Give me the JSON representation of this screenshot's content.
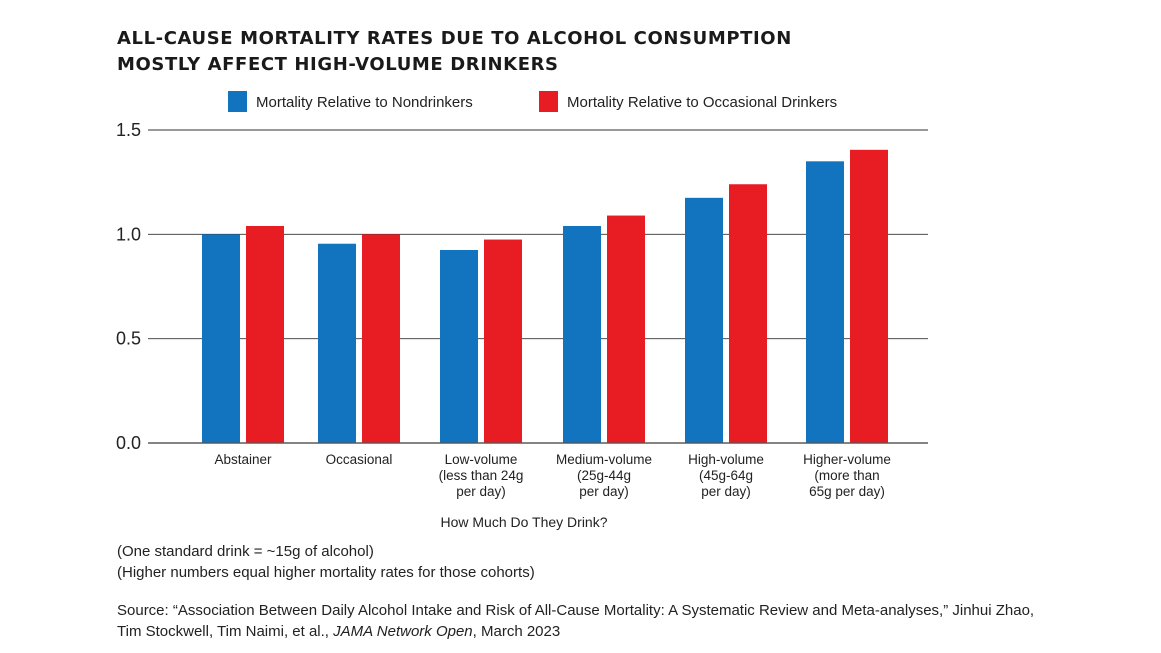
{
  "chart_data": {
    "type": "bar",
    "title": [
      "ALL-CAUSE MORTALITY RATES DUE TO ALCOHOL CONSUMPTION",
      "MOSTLY AFFECT HIGH-VOLUME DRINKERS"
    ],
    "xlabel": "How Much Do They Drink?",
    "ylabel": "",
    "ylim": [
      0,
      1.5
    ],
    "yticks": [
      "0.0",
      "0.5",
      "1.0",
      "1.5"
    ],
    "yticks_values": [
      0,
      0.5,
      1.0,
      1.5
    ],
    "grid": true,
    "legend_position": "top",
    "categories": [
      [
        "Abstainer"
      ],
      [
        "Occasional"
      ],
      [
        "Low-volume",
        "(less than 24g",
        "per day)"
      ],
      [
        "Medium-volume",
        "(25g-44g",
        "per day)"
      ],
      [
        "High-volume",
        "(45g-64g",
        "per day)"
      ],
      [
        "Higher-volume",
        "(more than",
        "65g per day)"
      ]
    ],
    "series": [
      {
        "name": "Mortality Relative to Nondrinkers",
        "color": "#1273bf",
        "values": [
          1.0,
          0.955,
          0.925,
          1.04,
          1.175,
          1.35
        ]
      },
      {
        "name": "Mortality Relative to Occasional Drinkers",
        "color": "#e81c23",
        "values": [
          1.04,
          1.0,
          0.975,
          1.09,
          1.24,
          1.405
        ]
      }
    ]
  },
  "notes": [
    "(One standard drink = ~15g of alcohol)",
    "(Higher numbers equal higher mortality rates for those cohorts)"
  ],
  "source": {
    "line1": "Source: “Association Between Daily Alcohol Intake and Risk of All-Cause Mortality: A Systematic Review and Meta-analyses,” Jinhui Zhao,",
    "line2_prefix": "Tim Stockwell, Tim Naimi, et al., ",
    "line2_journal": "JAMA Network Open",
    "line2_suffix": ", March 2023"
  }
}
